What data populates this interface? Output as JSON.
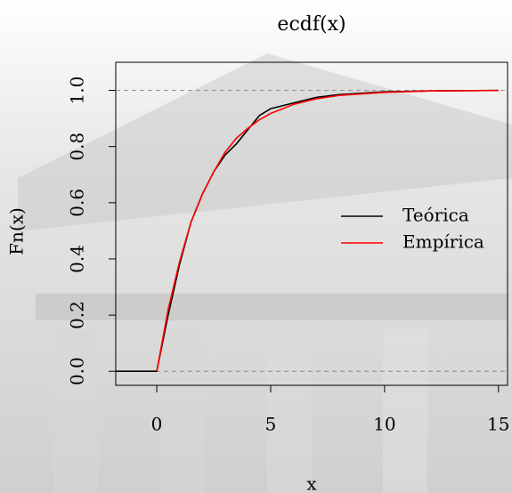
{
  "chart_data": {
    "type": "line",
    "title": "ecdf(x)",
    "x_label": "x",
    "y_label": "Fn(x)",
    "x": [
      -1.8,
      0,
      0.5,
      1,
      1.5,
      2,
      2.5,
      3,
      3.5,
      4,
      4.5,
      5,
      6,
      7,
      8,
      10,
      12,
      15
    ],
    "series": [
      {
        "name": "Teórica",
        "color": "#000000",
        "values": [
          0,
          0,
          0.2,
          0.38,
          0.53,
          0.63,
          0.71,
          0.77,
          0.81,
          0.86,
          0.91,
          0.935,
          0.955,
          0.975,
          0.985,
          0.995,
          0.998,
          1.0
        ]
      },
      {
        "name": "Empírica",
        "color": "#ff0000",
        "values": [
          null,
          0,
          0.22,
          0.39,
          0.53,
          0.63,
          0.71,
          0.78,
          0.83,
          0.865,
          0.895,
          0.918,
          0.95,
          0.97,
          0.982,
          0.993,
          0.998,
          0.9994
        ]
      }
    ],
    "reference_lines": [
      0,
      1
    ],
    "xlim": [
      -1.8,
      15.4
    ],
    "xticks": [
      0,
      5,
      10,
      15
    ],
    "ylim": [
      -0.05,
      1.1
    ],
    "yticks": [
      {
        "value": 0,
        "label": "0.0"
      },
      {
        "value": 0.2,
        "label": "0.2"
      },
      {
        "value": 0.4,
        "label": "0.4"
      },
      {
        "value": 0.6,
        "label": "0.6"
      },
      {
        "value": 0.8,
        "label": "0.8"
      },
      {
        "value": 1,
        "label": "1.0"
      }
    ],
    "legend": "right"
  }
}
